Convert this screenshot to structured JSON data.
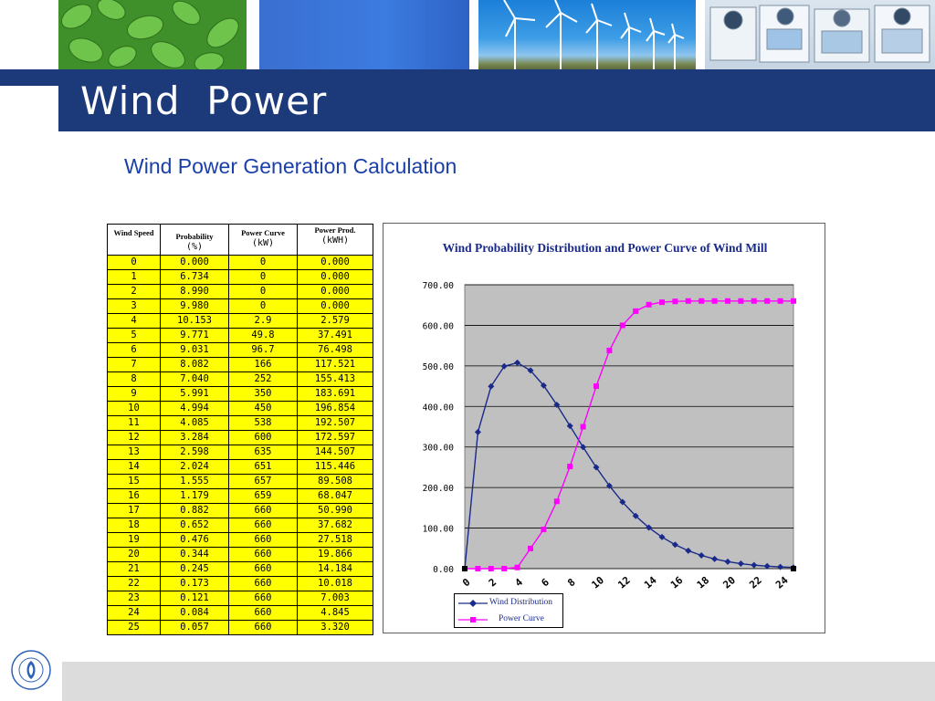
{
  "slide": {
    "title": "Wind  Power",
    "subtitle": "Wind Power Generation Calculation"
  },
  "table": {
    "headers": [
      {
        "name": "Wind Speed",
        "unit": ""
      },
      {
        "name": "Probability",
        "unit": "(%)"
      },
      {
        "name": "Power Curve",
        "unit": "(kW)"
      },
      {
        "name": "Power Prod.",
        "unit": "(kWH)"
      }
    ],
    "rows": [
      [
        "0",
        "0.000",
        "0",
        "0.000"
      ],
      [
        "1",
        "6.734",
        "0",
        "0.000"
      ],
      [
        "2",
        "8.990",
        "0",
        "0.000"
      ],
      [
        "3",
        "9.980",
        "0",
        "0.000"
      ],
      [
        "4",
        "10.153",
        "2.9",
        "2.579"
      ],
      [
        "5",
        "9.771",
        "49.8",
        "37.491"
      ],
      [
        "6",
        "9.031",
        "96.7",
        "76.498"
      ],
      [
        "7",
        "8.082",
        "166",
        "117.521"
      ],
      [
        "8",
        "7.040",
        "252",
        "155.413"
      ],
      [
        "9",
        "5.991",
        "350",
        "183.691"
      ],
      [
        "10",
        "4.994",
        "450",
        "196.854"
      ],
      [
        "11",
        "4.085",
        "538",
        "192.507"
      ],
      [
        "12",
        "3.284",
        "600",
        "172.597"
      ],
      [
        "13",
        "2.598",
        "635",
        "144.507"
      ],
      [
        "14",
        "2.024",
        "651",
        "115.446"
      ],
      [
        "15",
        "1.555",
        "657",
        "89.508"
      ],
      [
        "16",
        "1.179",
        "659",
        "68.047"
      ],
      [
        "17",
        "0.882",
        "660",
        "50.990"
      ],
      [
        "18",
        "0.652",
        "660",
        "37.682"
      ],
      [
        "19",
        "0.476",
        "660",
        "27.518"
      ],
      [
        "20",
        "0.344",
        "660",
        "19.866"
      ],
      [
        "21",
        "0.245",
        "660",
        "14.184"
      ],
      [
        "22",
        "0.173",
        "660",
        "10.018"
      ],
      [
        "23",
        "0.121",
        "660",
        "7.003"
      ],
      [
        "24",
        "0.084",
        "660",
        "4.845"
      ],
      [
        "25",
        "0.057",
        "660",
        "3.320"
      ]
    ]
  },
  "chart_data": {
    "type": "line",
    "title": "Wind Probability Distribution and Power Curve of Wind Mill",
    "xlabel": "",
    "ylabel": "",
    "x": [
      0,
      1,
      2,
      3,
      4,
      5,
      6,
      7,
      8,
      9,
      10,
      11,
      12,
      13,
      14,
      15,
      16,
      17,
      18,
      19,
      20,
      21,
      22,
      23,
      24,
      25
    ],
    "xticks": [
      "0",
      "2",
      "4",
      "6",
      "8",
      "10",
      "12",
      "14",
      "16",
      "18",
      "20",
      "22",
      "24"
    ],
    "yticks": [
      "0.00",
      "100.00",
      "200.00",
      "300.00",
      "400.00",
      "500.00",
      "600.00",
      "700.00"
    ],
    "ylim": [
      0,
      700
    ],
    "grid": true,
    "legend": "bottom-left",
    "series": [
      {
        "name": "Wind Distribution",
        "color": "#1a2a8a",
        "marker": "diamond",
        "values": [
          0,
          336.7,
          449.5,
          499.0,
          507.7,
          488.6,
          451.6,
          404.1,
          352.0,
          299.6,
          249.7,
          204.3,
          164.2,
          129.9,
          101.2,
          77.8,
          59.0,
          44.1,
          32.6,
          23.8,
          17.2,
          12.3,
          8.7,
          6.1,
          4.2,
          2.9
        ]
      },
      {
        "name": "Power Curve",
        "color": "#ff00ff",
        "marker": "square",
        "values": [
          0,
          0,
          0,
          0,
          2.9,
          49.8,
          96.7,
          166,
          252,
          350,
          450,
          538,
          600,
          635,
          651,
          657,
          659,
          660,
          660,
          660,
          660,
          660,
          660,
          660,
          660,
          660
        ]
      }
    ]
  },
  "colors": {
    "title_bar": "#1c3a7a",
    "subtitle": "#1a3fa8",
    "table_fill": "#ffff00",
    "plot_area": "#c0c0c0"
  }
}
